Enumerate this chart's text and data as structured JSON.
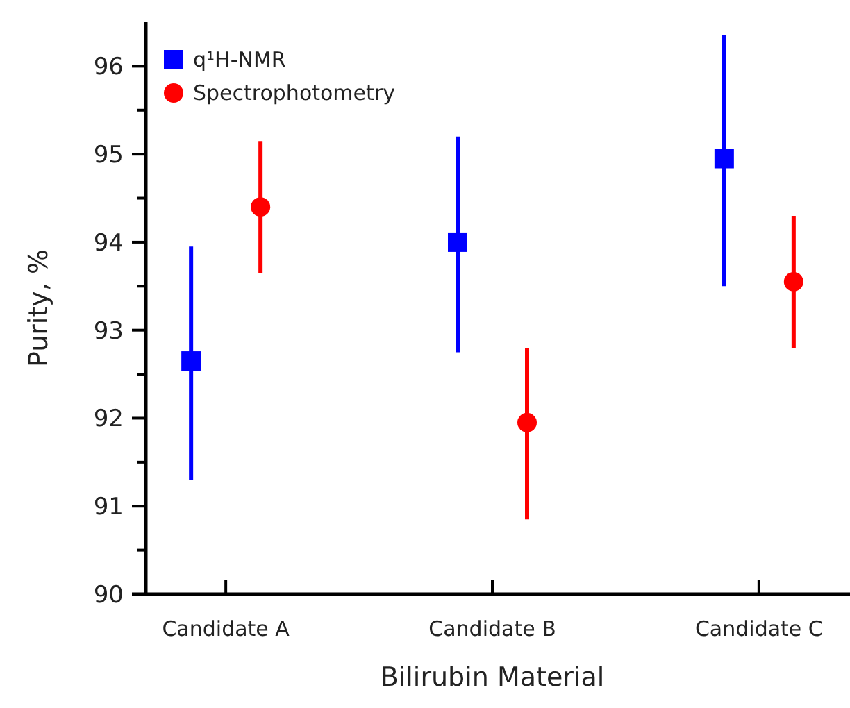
{
  "chart_data": {
    "type": "scatter",
    "xlabel": "Bilirubin Material",
    "ylabel": "Purity, %",
    "categories": [
      "Candidate A",
      "Candidate B",
      "Candidate C"
    ],
    "series": [
      {
        "name": "q¹H-NMR",
        "color": "#0000ff",
        "marker": "square",
        "values": [
          92.65,
          94.0,
          94.95
        ],
        "errors": [
          [
            91.3,
            93.95
          ],
          [
            92.75,
            95.2
          ],
          [
            93.5,
            96.35
          ]
        ]
      },
      {
        "name": "Spectrophotometry",
        "color": "#ff0000",
        "marker": "circle",
        "values": [
          94.4,
          91.95,
          93.55
        ],
        "errors": [
          [
            93.65,
            95.15
          ],
          [
            90.85,
            92.8
          ],
          [
            92.8,
            94.3
          ]
        ]
      }
    ],
    "ylim": [
      90,
      96.5
    ],
    "yticks": [
      90,
      {
        "value": 90.5,
        "label": null
      },
      91,
      {
        "value": 91.5,
        "label": null
      },
      92,
      {
        "value": 92.5,
        "label": null
      },
      93,
      {
        "value": 93.5,
        "label": null
      },
      94,
      {
        "value": 94.5,
        "label": null
      },
      95,
      {
        "value": 95.5,
        "label": null
      },
      96
    ],
    "legend": "top left",
    "grid": false
  }
}
